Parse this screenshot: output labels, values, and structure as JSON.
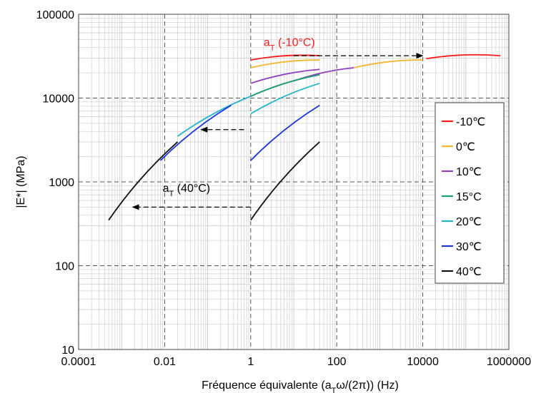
{
  "chart_data": {
    "type": "line",
    "title": "",
    "xlabel": "Fréquence équivalente (aTω/(2π)) (Hz)",
    "xlabel_parts": {
      "pre": "Fréquence équivalente (a",
      "sub": "T",
      "post": "ω/(2π)) (Hz)"
    },
    "ylabel": "|E*| (MPa)",
    "x_scale": "log",
    "y_scale": "log",
    "xlim": [
      0.0001,
      1000000
    ],
    "ylim": [
      10,
      100000
    ],
    "x_major_ticks": [
      0.0001,
      0.01,
      1,
      100,
      10000,
      1000000
    ],
    "x_tick_labels": [
      "0.0001",
      "0.01",
      "1",
      "100",
      "10000",
      "1000000"
    ],
    "y_major_ticks": [
      10,
      100,
      1000,
      10000,
      100000
    ],
    "y_tick_labels": [
      "10",
      "100",
      "1000",
      "10000",
      "100000"
    ],
    "grid": true,
    "legend_position": "right",
    "series": [
      {
        "name": "-10℃",
        "color": "#ff1a1a",
        "raw": [
          [
            1,
            28500
          ],
          [
            40,
            32000
          ]
        ],
        "shifted": [
          [
            12000,
            29500
          ],
          [
            640000,
            32000
          ]
        ]
      },
      {
        "name": "0℃",
        "color": "#f5b731",
        "raw": [
          [
            1,
            23000
          ],
          [
            40,
            28500
          ]
        ],
        "shifted": [
          [
            250,
            23000
          ],
          [
            10000,
            28500
          ]
        ]
      },
      {
        "name": "10℃",
        "color": "#8e3dbd",
        "raw": [
          [
            1,
            15000
          ],
          [
            40,
            22000
          ]
        ],
        "shifted": [
          [
            10,
            16000
          ],
          [
            250,
            23000
          ]
        ]
      },
      {
        "name": "15°C",
        "color": "#1e9c6e",
        "raw": [
          [
            1,
            10500
          ],
          [
            40,
            19000
          ]
        ],
        "shifted": [
          [
            1,
            10500
          ],
          [
            40,
            19000
          ]
        ]
      },
      {
        "name": "20℃",
        "color": "#24b4cc",
        "raw": [
          [
            1,
            6500
          ],
          [
            40,
            15000
          ]
        ],
        "shifted": [
          [
            0.02,
            3500
          ],
          [
            1,
            10500
          ]
        ]
      },
      {
        "name": "30℃",
        "color": "#1b35d9",
        "raw": [
          [
            1,
            1800
          ],
          [
            40,
            8200
          ]
        ],
        "shifted": [
          [
            0.008,
            1800
          ],
          [
            0.35,
            8200
          ]
        ]
      },
      {
        "name": "40℃",
        "color": "#111111",
        "raw": [
          [
            1,
            350
          ],
          [
            40,
            3000
          ]
        ],
        "shifted": [
          [
            0.0005,
            350
          ],
          [
            0.02,
            3000
          ]
        ]
      }
    ],
    "annotations": [
      {
        "text_main": "a",
        "text_sub": "T",
        "text_post": " (-10°C)",
        "color": "#ff1a1a",
        "anchor": [
          2,
          42000
        ],
        "arrow": {
          "from": [
            10,
            32000
          ],
          "to": [
            10000,
            32000
          ]
        }
      },
      {
        "text_main": "",
        "text_sub": "",
        "text_post": "",
        "color": "#000000",
        "anchor": [
          0,
          0
        ],
        "arrow": {
          "from": [
            0.7,
            4200
          ],
          "to": [
            0.07,
            4200
          ]
        }
      },
      {
        "text_main": "a",
        "text_sub": "T",
        "text_post": " (40°C)",
        "color": "#000000",
        "anchor": [
          0.009,
          760
        ],
        "arrow": {
          "from": [
            1,
            500
          ],
          "to": [
            0.0018,
            500
          ]
        }
      }
    ]
  }
}
